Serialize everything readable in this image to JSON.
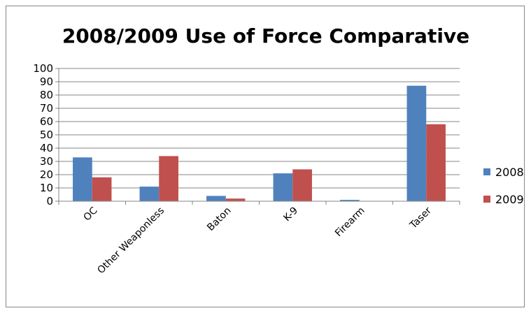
{
  "chart_data": {
    "type": "bar",
    "title": "2008/2009 Use of Force Comparative",
    "xlabel": "",
    "ylabel": "",
    "categories": [
      "OC",
      "Other Weaponless",
      "Baton",
      "K-9",
      "Firearm",
      "Taser"
    ],
    "series": [
      {
        "name": "2008",
        "values": [
          33,
          11,
          4,
          21,
          1,
          87
        ],
        "color": "#4f81bd"
      },
      {
        "name": "2009",
        "values": [
          18,
          34,
          2,
          24,
          0,
          58
        ],
        "color": "#c0504d"
      }
    ],
    "ylim": [
      0,
      100
    ],
    "yticks": [
      "0",
      "10",
      "20",
      "30",
      "40",
      "50",
      "60",
      "70",
      "80",
      "90",
      "100"
    ],
    "grid": true,
    "legend_position": "right"
  }
}
